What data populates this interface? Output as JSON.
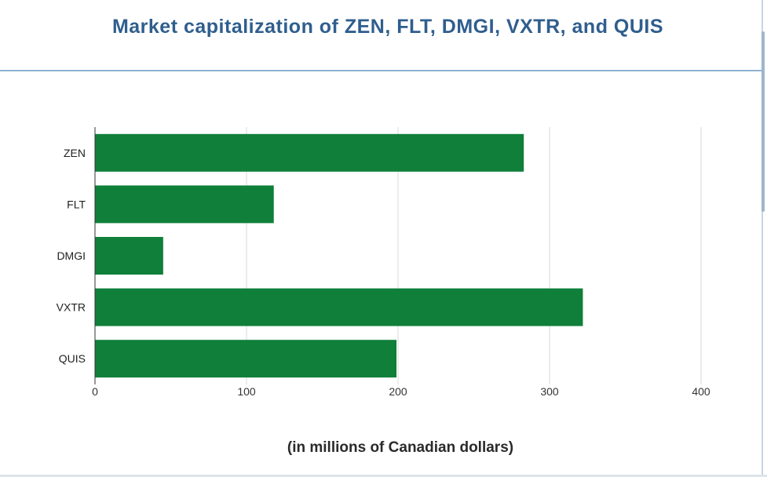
{
  "chart_data": {
    "type": "bar",
    "orientation": "horizontal",
    "title": "Market capitalization of ZEN, FLT, DMGI,  VXTR, and QUIS",
    "xlabel": "(in millions of Canadian dollars)",
    "ylabel": "",
    "categories": [
      "ZEN",
      "FLT",
      "DMGI",
      "VXTR",
      "QUIS"
    ],
    "values": [
      283,
      118,
      45,
      322,
      199
    ],
    "xlim": [
      0,
      400
    ],
    "xticks": [
      0,
      100,
      200,
      300,
      400
    ],
    "grid": true,
    "legend": "none",
    "bar_color": "#0f7f3a"
  }
}
